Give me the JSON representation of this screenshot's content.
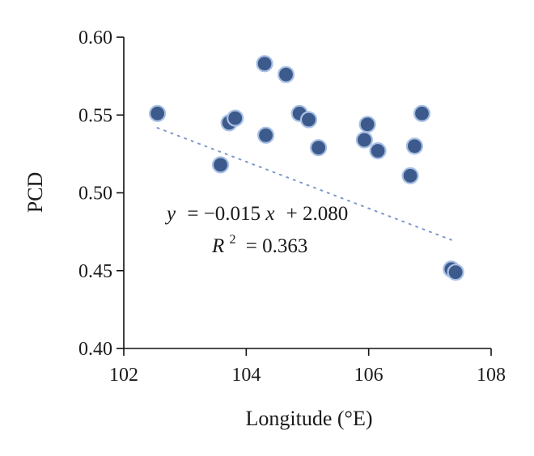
{
  "chart_data": {
    "type": "scatter",
    "xlabel": "Longitude (°E)",
    "ylabel": "PCD",
    "xlim": [
      102,
      108
    ],
    "ylim": [
      0.4,
      0.6
    ],
    "xticks": [
      102,
      104,
      106,
      108
    ],
    "yticks": [
      0.4,
      0.45,
      0.5,
      0.55,
      0.6
    ],
    "xtick_labels": [
      "102",
      "104",
      "106",
      "108"
    ],
    "ytick_labels": [
      "0.40",
      "0.45",
      "0.50",
      "0.55",
      "0.60"
    ],
    "points": [
      {
        "x": 102.55,
        "y": 0.551
      },
      {
        "x": 103.58,
        "y": 0.518
      },
      {
        "x": 103.72,
        "y": 0.545
      },
      {
        "x": 103.82,
        "y": 0.548
      },
      {
        "x": 104.3,
        "y": 0.583
      },
      {
        "x": 104.32,
        "y": 0.537
      },
      {
        "x": 104.65,
        "y": 0.576
      },
      {
        "x": 104.87,
        "y": 0.551
      },
      {
        "x": 105.02,
        "y": 0.547
      },
      {
        "x": 105.18,
        "y": 0.529
      },
      {
        "x": 105.93,
        "y": 0.534
      },
      {
        "x": 105.98,
        "y": 0.544
      },
      {
        "x": 106.15,
        "y": 0.527
      },
      {
        "x": 106.68,
        "y": 0.511
      },
      {
        "x": 106.75,
        "y": 0.53
      },
      {
        "x": 106.87,
        "y": 0.551
      },
      {
        "x": 107.35,
        "y": 0.451
      },
      {
        "x": 107.42,
        "y": 0.449
      }
    ],
    "trendline": {
      "slope": -0.015,
      "intercept": 2.08,
      "x_range": [
        102.55,
        107.35
      ]
    },
    "annotations": {
      "equation": {
        "y": "y",
        "rhs": "= −0.015",
        "x": "x",
        "tail": "+ 2.080"
      },
      "r_squared": {
        "r": "R",
        "sup": "2",
        "rhs": "= 0.363"
      }
    },
    "grid": false,
    "legend": "none",
    "colors": {
      "marker_fill": "#3d5a8c",
      "marker_edge": "#a8c0e4",
      "trendline": "#7d98c8"
    }
  }
}
